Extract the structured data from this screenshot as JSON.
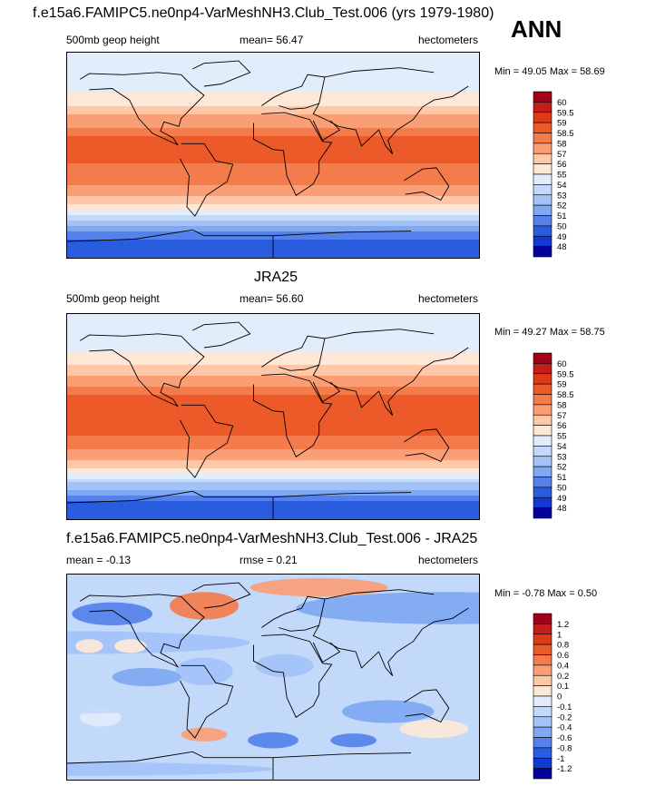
{
  "page": {
    "main_title": "f.e15a6.FAMIPC5.ne0np4-VarMeshNH3.Club_Test.006 (yrs 1979-1980)",
    "season": "ANN"
  },
  "chart_data": [
    {
      "type": "heatmap",
      "title": "",
      "left_label": "500mb geop height",
      "center_label": "mean=  56.47",
      "right_label": "hectometers",
      "stats": "Min =  49.05 Max =  58.69",
      "min": 49.05,
      "max": 58.69,
      "mean": 56.47,
      "zonal_profile": {
        "lat": [
          90,
          75,
          60,
          45,
          30,
          15,
          0,
          -15,
          -30,
          -45,
          -60,
          -75,
          -90
        ],
        "value": [
          54.0,
          54.2,
          54.6,
          55.8,
          57.6,
          58.6,
          58.6,
          58.4,
          57.8,
          55.8,
          52.4,
          49.6,
          49.0
        ]
      },
      "colorbar": {
        "labels": [
          "60",
          "59.5",
          "59",
          "58.5",
          "58",
          "57",
          "56",
          "55",
          "54",
          "53",
          "52",
          "51",
          "50",
          "49",
          "48"
        ],
        "colors": [
          "#a00018",
          "#c51d1d",
          "#de3a16",
          "#ec5a2a",
          "#f47c4c",
          "#fa9e76",
          "#fdc7a8",
          "#fde8d8",
          "#e2edfb",
          "#c3d9fa",
          "#a3c2f8",
          "#7ea8f2",
          "#5582ea",
          "#2a5ce0",
          "#123ad0",
          "#06009a"
        ]
      }
    },
    {
      "type": "heatmap",
      "title": "JRA25",
      "left_label": "500mb geop height",
      "center_label": "mean=  56.60",
      "right_label": "hectometers",
      "stats": "Min =  49.27 Max =  58.75",
      "min": 49.27,
      "max": 58.75,
      "mean": 56.6,
      "zonal_profile": {
        "lat": [
          90,
          75,
          60,
          45,
          30,
          15,
          0,
          -15,
          -30,
          -45,
          -60,
          -75,
          -90
        ],
        "value": [
          54.0,
          54.2,
          54.8,
          56.0,
          57.8,
          58.7,
          58.8,
          58.6,
          57.9,
          55.9,
          52.5,
          49.8,
          49.3
        ]
      },
      "colorbar": {
        "labels": [
          "60",
          "59.5",
          "59",
          "58.5",
          "58",
          "57",
          "56",
          "55",
          "54",
          "53",
          "52",
          "51",
          "50",
          "49",
          "48"
        ],
        "colors": [
          "#a00018",
          "#c51d1d",
          "#de3a16",
          "#ec5a2a",
          "#f47c4c",
          "#fa9e76",
          "#fdc7a8",
          "#fde8d8",
          "#e2edfb",
          "#c3d9fa",
          "#a3c2f8",
          "#7ea8f2",
          "#5582ea",
          "#2a5ce0",
          "#123ad0",
          "#06009a"
        ]
      }
    },
    {
      "type": "heatmap",
      "title": "f.e15a6.FAMIPC5.ne0np4-VarMeshNH3.Club_Test.006 - JRA25",
      "left_label": "mean =  -0.13",
      "center_label": "rmse =   0.21",
      "right_label": "hectometers",
      "stats": "Min =  -0.78 Max =   0.50",
      "min": -0.78,
      "max": 0.5,
      "mean": -0.13,
      "rmse": 0.21,
      "colorbar": {
        "labels": [
          "1.2",
          "1",
          "0.8",
          "0.6",
          "0.4",
          "0.2",
          "0.1",
          "0",
          "-0.1",
          "-0.2",
          "-0.4",
          "-0.6",
          "-0.8",
          "-1",
          "-1.2"
        ],
        "colors": [
          "#a00018",
          "#c51d1d",
          "#de3a16",
          "#ec5a2a",
          "#f47c4c",
          "#fa9e76",
          "#fdc7a8",
          "#fde8d8",
          "#e2edfb",
          "#c3d9fa",
          "#a3c2f8",
          "#7ea8f2",
          "#5582ea",
          "#2a5ce0",
          "#123ad0",
          "#06009a"
        ]
      }
    }
  ]
}
